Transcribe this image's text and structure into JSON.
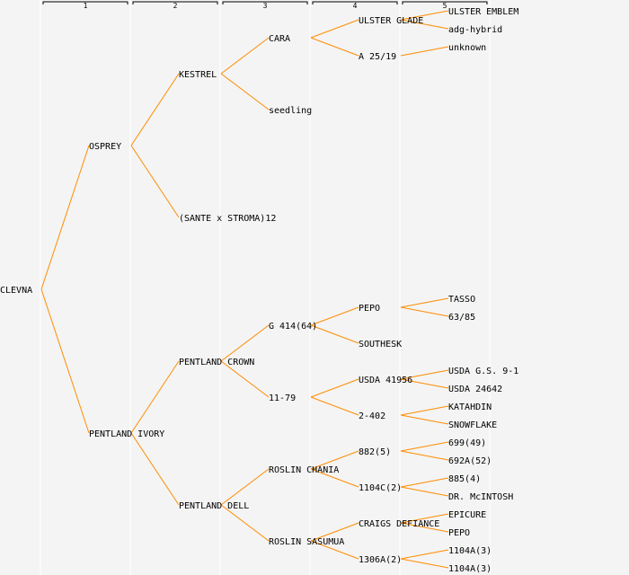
{
  "colors": {
    "line": "#ff8c00",
    "highlight": "#0000ff",
    "text": "#000000",
    "background": "#f4f4f4",
    "separator": "#ffffff"
  },
  "generations": [
    "1",
    "2",
    "3",
    "4",
    "5"
  ],
  "tree": {
    "label": "CLEVNA",
    "children": [
      {
        "label": "OSPREY",
        "children": [
          {
            "label": "KESTREL",
            "children": [
              {
                "label": "CARA",
                "children": [
                  {
                    "label": "ULSTER GLADE",
                    "children": [
                      {
                        "label": "ULSTER EMBLEM"
                      },
                      {
                        "label": "adg-hybrid"
                      }
                    ]
                  },
                  {
                    "label": "A 25/19",
                    "children": [
                      {
                        "label": "unknown"
                      },
                      null
                    ]
                  }
                ]
              },
              {
                "label": "seedling"
              }
            ]
          },
          {
            "label": "(SANTE x STROMA)12"
          }
        ]
      },
      {
        "label": "PENTLAND IVORY",
        "children": [
          {
            "label": "PENTLAND CROWN",
            "children": [
              {
                "label": "G 414(64)",
                "children": [
                  {
                    "label": "PEPO",
                    "highlight": true,
                    "children": [
                      {
                        "label": "TASSO"
                      },
                      {
                        "label": "63/85"
                      }
                    ]
                  },
                  {
                    "label": "SOUTHESK"
                  }
                ]
              },
              {
                "label": "11-79",
                "children": [
                  {
                    "label": "USDA 41956",
                    "children": [
                      {
                        "label": "USDA G.S. 9-1"
                      },
                      {
                        "label": "USDA 24642"
                      }
                    ]
                  },
                  {
                    "label": "2-402",
                    "children": [
                      {
                        "label": "KATAHDIN"
                      },
                      {
                        "label": "SNOWFLAKE"
                      }
                    ]
                  }
                ]
              }
            ]
          },
          {
            "label": "PENTLAND DELL",
            "children": [
              {
                "label": "ROSLIN CHANIA",
                "children": [
                  {
                    "label": "882(5)",
                    "children": [
                      {
                        "label": "699(49)"
                      },
                      {
                        "label": "692A(52)"
                      }
                    ]
                  },
                  {
                    "label": "1104C(2)",
                    "children": [
                      {
                        "label": "885(4)"
                      },
                      {
                        "label": "DR. McINTOSH"
                      }
                    ]
                  }
                ]
              },
              {
                "label": "ROSLIN SASUMUA",
                "children": [
                  {
                    "label": "CRAIGS DEFIANCE",
                    "children": [
                      {
                        "label": "EPICURE"
                      },
                      {
                        "label": "PEPO"
                      }
                    ]
                  },
                  {
                    "label": "1306A(2)",
                    "children": [
                      {
                        "label": "1104A(3)"
                      },
                      {
                        "label": "1104A(3)"
                      }
                    ]
                  }
                ]
              }
            ]
          }
        ]
      }
    ]
  }
}
